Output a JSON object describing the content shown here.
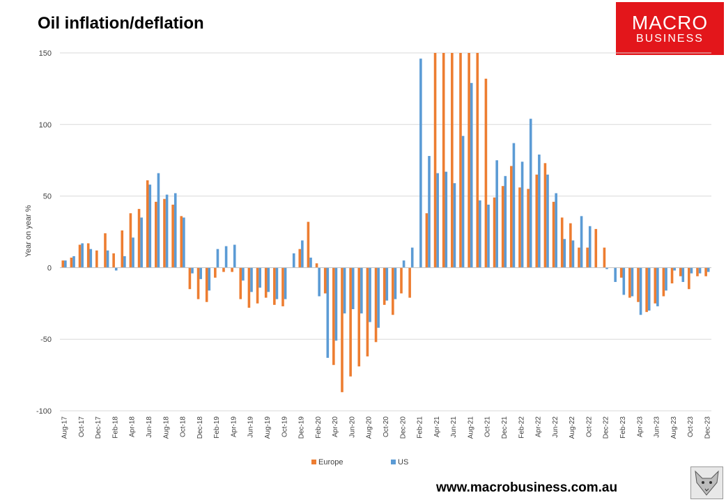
{
  "title": "Oil inflation/deflation",
  "logo": {
    "line1": "MACRO",
    "line2": "BUSINESS"
  },
  "website": "www.macrobusiness.com.au",
  "colors": {
    "europe": "#ed7d31",
    "us": "#5b9bd5",
    "grid": "#d9d9d9",
    "logo_bg": "#e3161b"
  },
  "chart_data": {
    "type": "bar",
    "title": "Oil inflation/deflation",
    "ylabel": "Year on year %",
    "xlabel": "",
    "ylim": [
      -100,
      150
    ],
    "yticks": [
      150,
      100,
      50,
      0,
      -50,
      -100
    ],
    "ytick_labels": [
      "150",
      "100",
      "50",
      "0",
      "-50",
      "-100"
    ],
    "grid": true,
    "legend_position": "bottom-center",
    "categories": [
      "Aug-17",
      "Sep-17",
      "Oct-17",
      "Nov-17",
      "Dec-17",
      "Jan-18",
      "Feb-18",
      "Mar-18",
      "Apr-18",
      "May-18",
      "Jun-18",
      "Jul-18",
      "Aug-18",
      "Sep-18",
      "Oct-18",
      "Nov-18",
      "Dec-18",
      "Jan-19",
      "Feb-19",
      "Mar-19",
      "Apr-19",
      "May-19",
      "Jun-19",
      "Jul-19",
      "Aug-19",
      "Sep-19",
      "Oct-19",
      "Nov-19",
      "Dec-19",
      "Jan-20",
      "Feb-20",
      "Mar-20",
      "Apr-20",
      "May-20",
      "Jun-20",
      "Jul-20",
      "Aug-20",
      "Sep-20",
      "Oct-20",
      "Nov-20",
      "Dec-20",
      "Jan-21",
      "Feb-21",
      "Mar-21",
      "Apr-21",
      "May-21",
      "Jun-21",
      "Jul-21",
      "Aug-21",
      "Sep-21",
      "Oct-21",
      "Nov-21",
      "Dec-21",
      "Jan-22",
      "Feb-22",
      "Mar-22",
      "Apr-22",
      "May-22",
      "Jun-22",
      "Jul-22",
      "Aug-22",
      "Sep-22",
      "Oct-22",
      "Nov-22",
      "Dec-22",
      "Jan-23",
      "Feb-23",
      "Mar-23",
      "Apr-23",
      "May-23",
      "Jun-23",
      "Jul-23",
      "Aug-23",
      "Sep-23",
      "Oct-23",
      "Nov-23",
      "Dec-23"
    ],
    "x_tick_labels": [
      "Aug-17",
      "Oct-17",
      "Dec-17",
      "Feb-18",
      "Apr-18",
      "Jun-18",
      "Aug-18",
      "Oct-18",
      "Dec-18",
      "Feb-19",
      "Apr-19",
      "Jun-19",
      "Aug-19",
      "Oct-19",
      "Dec-19",
      "Feb-20",
      "Apr-20",
      "Jun-20",
      "Aug-20",
      "Oct-20",
      "Dec-20",
      "Feb-21",
      "Apr-21",
      "Jun-21",
      "Aug-21",
      "Oct-21",
      "Dec-21",
      "Feb-22",
      "Apr-22",
      "Jun-22",
      "Aug-22",
      "Oct-22",
      "Dec-22",
      "Feb-23",
      "Apr-23",
      "Jun-23",
      "Aug-23",
      "Oct-23",
      "Dec-23"
    ],
    "series": [
      {
        "name": "Europe",
        "values": [
          5,
          7,
          16,
          17,
          12,
          24,
          10,
          26,
          38,
          41,
          61,
          46,
          48,
          44,
          36,
          -15,
          -22,
          -24,
          -7,
          -3,
          -3,
          -22,
          -28,
          -25,
          -21,
          -26,
          -27,
          0,
          13,
          32,
          3,
          -18,
          -68,
          -87,
          -76,
          -69,
          -62,
          -52,
          -26,
          -33,
          -18,
          -21,
          0,
          38,
          150,
          150,
          150,
          150,
          150,
          150,
          132,
          49,
          57,
          71,
          56,
          55,
          65,
          73,
          46,
          35,
          31,
          14,
          14,
          27,
          14,
          0,
          -7,
          -21,
          -24,
          -31,
          -25,
          -20,
          -11,
          -6,
          -15,
          -6,
          -6
        ]
      },
      {
        "name": "US",
        "values": [
          5,
          8,
          17,
          13,
          0,
          12,
          -2,
          8,
          21,
          35,
          58,
          66,
          51,
          52,
          35,
          -4,
          -8,
          -16,
          13,
          15,
          16,
          -9,
          -17,
          -14,
          -17,
          -22,
          -22,
          10,
          19,
          7,
          -20,
          -63,
          -51,
          -32,
          -29,
          -32,
          -38,
          -42,
          -23,
          -22,
          5,
          14,
          146,
          78,
          66,
          67,
          59,
          92,
          129,
          47,
          44,
          75,
          64,
          87,
          74,
          104,
          79,
          65,
          52,
          20,
          19,
          36,
          29,
          0,
          -1,
          -10,
          -19,
          -20,
          -33,
          -30,
          -27,
          -16,
          -2,
          -10,
          -4,
          -4,
          -3
        ]
      }
    ]
  }
}
